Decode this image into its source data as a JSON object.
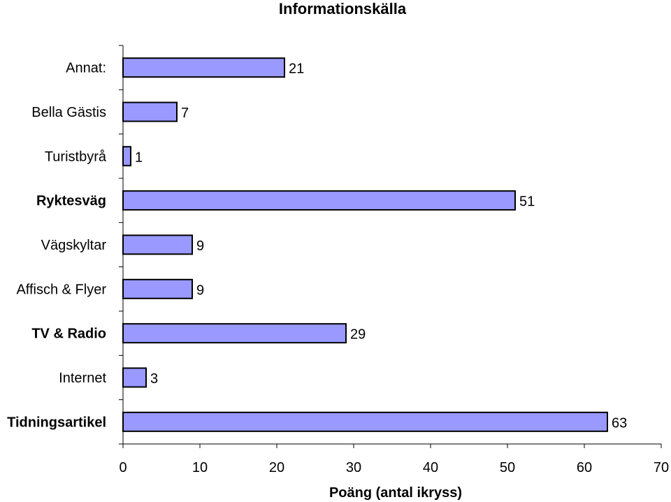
{
  "chart_data": {
    "type": "bar",
    "orientation": "horizontal",
    "title": "Informationskälla",
    "xlabel": "Poäng (antal ikryss)",
    "ylabel": "",
    "xlim": [
      0,
      70
    ],
    "xticks": [
      0,
      10,
      20,
      30,
      40,
      50,
      60,
      70
    ],
    "categories": [
      "Annat:",
      "Bella Gästis",
      "Turistbyrå",
      "Ryktesväg",
      "Vägskyltar",
      "Affisch & Flyer",
      "TV & Radio",
      "Internet",
      "Tidningsartikel"
    ],
    "bold_categories": [
      "Ryktesväg",
      "TV & Radio",
      "Tidningsartikel"
    ],
    "values": [
      21,
      7,
      1,
      51,
      9,
      9,
      29,
      3,
      63
    ],
    "bar_color": "#9999ff",
    "bar_edge_color": "#000000",
    "grid": false,
    "legend": "none"
  }
}
